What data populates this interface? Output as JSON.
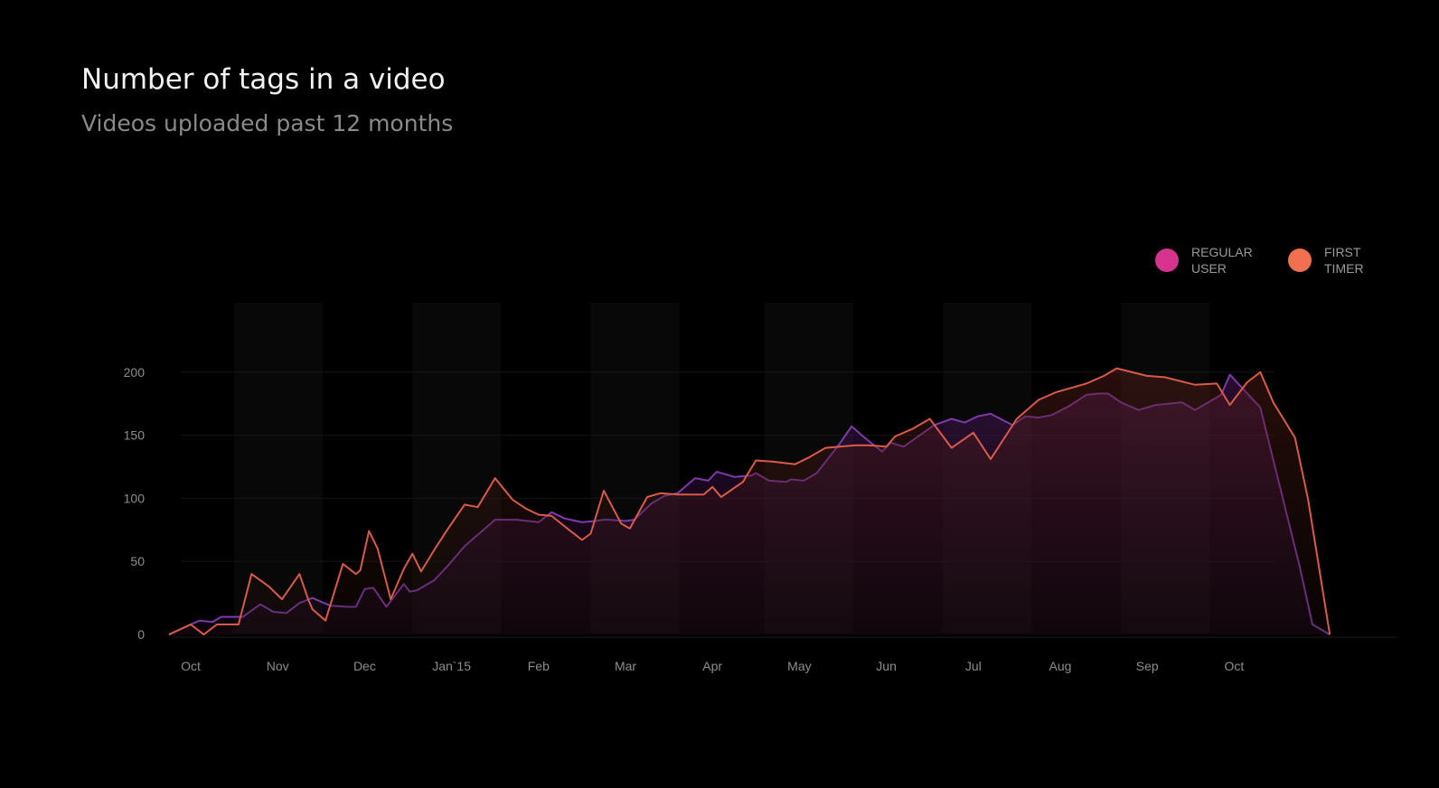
{
  "title": "Number of tags in a video",
  "subtitle": "Videos uploaded past 12 months",
  "legend": {
    "regular": {
      "label_line1": "REGULAR",
      "label_line2": "USER",
      "color": "#d6338f"
    },
    "first": {
      "label_line1": "FIRST",
      "label_line2": "TIMER",
      "color": "#f07050"
    }
  },
  "colors": {
    "background": "#000000",
    "regular_line": "#7e3aa8",
    "first_line": "#d95a48"
  },
  "chart_data": {
    "type": "area",
    "title": "Number of tags in a video",
    "subtitle": "Videos uploaded past 12 months",
    "xlabel": "",
    "ylabel": "",
    "x_ticks": [
      "Oct",
      "Nov",
      "Dec",
      "Jan`15",
      "Feb",
      "Mar",
      "Apr",
      "May",
      "Jun",
      "Jul",
      "Aug",
      "Sep",
      "Oct"
    ],
    "y_ticks": [
      0,
      50,
      100,
      150,
      200
    ],
    "ylim": [
      -8,
      215
    ],
    "xlim": [
      -0.25,
      13.3
    ],
    "grid": true,
    "legend_position": "top-right",
    "series": [
      {
        "name": "REGULAR USER",
        "key": "regular",
        "x": [
          -0.25,
          0.0,
          0.1,
          0.25,
          0.35,
          0.6,
          0.8,
          0.95,
          1.1,
          1.25,
          1.4,
          1.6,
          1.8,
          1.9,
          2.0,
          2.1,
          2.25,
          2.45,
          2.52,
          2.6,
          2.8,
          2.95,
          3.15,
          3.5,
          3.75,
          4.0,
          4.15,
          4.3,
          4.5,
          4.65,
          4.75,
          4.8,
          5.0,
          5.1,
          5.3,
          5.45,
          5.6,
          5.8,
          5.95,
          6.05,
          6.25,
          6.45,
          6.5,
          6.65,
          6.85,
          6.9,
          7.05,
          7.2,
          7.45,
          7.6,
          7.75,
          7.95,
          8.05,
          8.2,
          8.55,
          8.75,
          8.9,
          9.05,
          9.2,
          9.45,
          9.6,
          9.75,
          9.9,
          10.1,
          10.3,
          10.45,
          10.55,
          10.7,
          10.9,
          11.1,
          11.4,
          11.55,
          11.85,
          11.95,
          12.3,
          12.75,
          12.9,
          13.1
        ],
        "values": [
          -8,
          0,
          3,
          2,
          6,
          6,
          16,
          10,
          9,
          17,
          21,
          15,
          14,
          14,
          28,
          29,
          14,
          32,
          26,
          27,
          35,
          46,
          62,
          83,
          83,
          81,
          89,
          84,
          81,
          82,
          83,
          83,
          82,
          83,
          96,
          102,
          104,
          116,
          114,
          121,
          117,
          118,
          120,
          114,
          113,
          115,
          114,
          120,
          142,
          157,
          148,
          137,
          144,
          141,
          158,
          163,
          160,
          165,
          167,
          158,
          165,
          164,
          166,
          173,
          182,
          183,
          183,
          176,
          170,
          174,
          176,
          170,
          182,
          198,
          172,
          47,
          0,
          -8
        ]
      },
      {
        "name": "FIRST TIMER",
        "key": "first",
        "x": [
          -0.25,
          0.0,
          0.15,
          0.3,
          0.55,
          0.7,
          0.9,
          1.05,
          1.25,
          1.35,
          1.4,
          1.55,
          1.75,
          1.9,
          1.95,
          2.05,
          2.15,
          2.3,
          2.45,
          2.55,
          2.65,
          2.8,
          2.95,
          3.15,
          3.3,
          3.5,
          3.7,
          3.85,
          4.0,
          4.15,
          4.35,
          4.5,
          4.6,
          4.75,
          4.95,
          5.05,
          5.25,
          5.4,
          5.6,
          5.9,
          6.0,
          6.1,
          6.35,
          6.5,
          6.7,
          6.95,
          7.1,
          7.3,
          7.65,
          7.8,
          8.0,
          8.1,
          8.3,
          8.5,
          8.75,
          9.0,
          9.2,
          9.5,
          9.75,
          9.95,
          10.3,
          10.5,
          10.65,
          11.0,
          11.2,
          11.55,
          11.8,
          11.95,
          12.15,
          12.3,
          12.45,
          12.7,
          12.85,
          13.1
        ],
        "values": [
          -8,
          0,
          -8,
          0,
          0,
          40,
          30,
          20,
          40,
          20,
          12,
          3,
          48,
          40,
          43,
          74,
          60,
          20,
          44,
          56,
          42,
          59,
          75,
          95,
          93,
          116,
          99,
          92,
          87,
          86,
          75,
          67,
          72,
          106,
          80,
          76,
          101,
          104,
          103,
          103,
          109,
          101,
          113,
          130,
          129,
          127,
          132,
          140,
          142,
          142,
          141,
          149,
          155,
          163,
          140,
          152,
          131,
          163,
          178,
          184,
          191,
          197,
          203,
          197,
          196,
          190,
          191,
          174,
          192,
          200,
          176,
          148,
          99,
          -8
        ]
      }
    ]
  }
}
